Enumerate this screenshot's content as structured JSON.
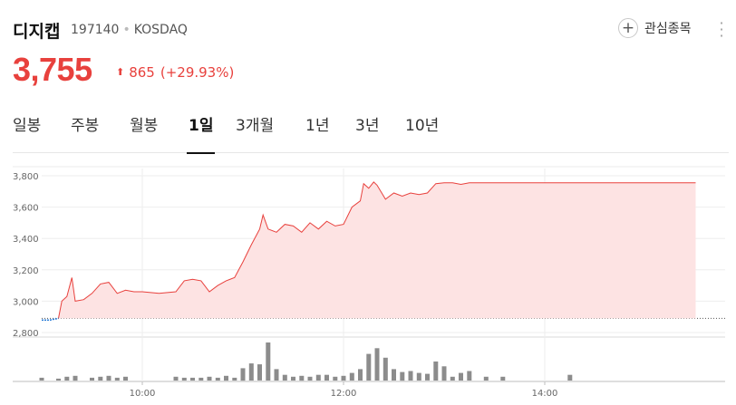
{
  "stock": {
    "name": "디지캡",
    "code": "197140",
    "market": "KOSDAQ",
    "price": "3,755",
    "change": "865",
    "change_pct": "(+29.93%)",
    "favorite_label": "관심종목",
    "up_color": "#e8413d"
  },
  "tabs": [
    {
      "label": "일봉",
      "active": false
    },
    {
      "label": "주봉",
      "active": false
    },
    {
      "label": "월봉",
      "active": false
    },
    {
      "label": "1일",
      "active": true
    },
    {
      "label": "3개월",
      "active": false
    },
    {
      "label": "1년",
      "active": false
    },
    {
      "label": "3년",
      "active": false
    },
    {
      "label": "10년",
      "active": false
    }
  ],
  "icons": {
    "favorite": "plus-circle-icon",
    "more": "vertical-dots-icon",
    "change": "up-arrow-icon"
  },
  "chart_data": {
    "type": "area",
    "title": "",
    "xlabel": "",
    "ylabel": "",
    "y_ticks": [
      "3,800",
      "3,600",
      "3,400",
      "3,200",
      "3,000",
      "2,800"
    ],
    "x_ticks": [
      "10:00",
      "12:00",
      "14:00"
    ],
    "ylim": [
      2800,
      3850
    ],
    "previous_close": 2890,
    "grid": true,
    "series": [
      {
        "x": [
          "09:00",
          "09:05",
          "09:10",
          "09:12",
          "09:15",
          "09:18",
          "09:20",
          "09:25",
          "09:30",
          "09:35",
          "09:40",
          "09:45",
          "09:50",
          "09:55",
          "10:00",
          "10:10",
          "10:20",
          "10:25",
          "10:30",
          "10:35",
          "10:40",
          "10:45",
          "10:50",
          "10:55",
          "11:00",
          "11:05",
          "11:10",
          "11:12",
          "11:15",
          "11:20",
          "11:25",
          "11:30",
          "11:35",
          "11:40",
          "11:45",
          "11:50",
          "11:55",
          "12:00",
          "12:05",
          "12:10",
          "12:12",
          "12:15",
          "12:18",
          "12:20",
          "12:25",
          "12:30",
          "12:35",
          "12:40",
          "12:45",
          "12:50",
          "12:55",
          "13:00",
          "13:05",
          "13:10",
          "13:15",
          "13:20",
          "14:00",
          "15:00",
          "15:30"
        ],
        "values": [
          2880,
          2880,
          2890,
          3000,
          3030,
          3150,
          3000,
          3010,
          3050,
          3110,
          3120,
          3050,
          3070,
          3060,
          3060,
          3050,
          3060,
          3130,
          3140,
          3130,
          3060,
          3100,
          3130,
          3150,
          3250,
          3360,
          3460,
          3550,
          3460,
          3440,
          3490,
          3480,
          3440,
          3500,
          3460,
          3510,
          3480,
          3490,
          3600,
          3640,
          3750,
          3720,
          3760,
          3740,
          3650,
          3690,
          3670,
          3690,
          3680,
          3690,
          3750,
          3755,
          3755,
          3745,
          3755,
          3755,
          3755,
          3755,
          3755
        ]
      }
    ],
    "volume": {
      "x": [
        "09:00",
        "09:10",
        "09:15",
        "09:20",
        "09:30",
        "09:35",
        "09:40",
        "09:45",
        "09:50",
        "10:20",
        "10:25",
        "10:30",
        "10:35",
        "10:40",
        "10:45",
        "10:50",
        "10:55",
        "11:00",
        "11:05",
        "11:10",
        "11:15",
        "11:20",
        "11:25",
        "11:30",
        "11:35",
        "11:40",
        "11:45",
        "11:50",
        "11:55",
        "12:00",
        "12:05",
        "12:10",
        "12:15",
        "12:20",
        "12:25",
        "12:30",
        "12:35",
        "12:40",
        "12:45",
        "12:50",
        "12:55",
        "13:00",
        "13:05",
        "13:10",
        "13:15",
        "13:25",
        "13:35",
        "14:15"
      ],
      "values": [
        3,
        2,
        4,
        5,
        3,
        4,
        5,
        3,
        4,
        4,
        3,
        3,
        3,
        4,
        3,
        5,
        3,
        13,
        18,
        17,
        40,
        12,
        6,
        4,
        5,
        4,
        6,
        6,
        4,
        5,
        8,
        12,
        28,
        34,
        24,
        12,
        9,
        10,
        8,
        7,
        20,
        15,
        4,
        8,
        10,
        4,
        4,
        6
      ]
    }
  }
}
